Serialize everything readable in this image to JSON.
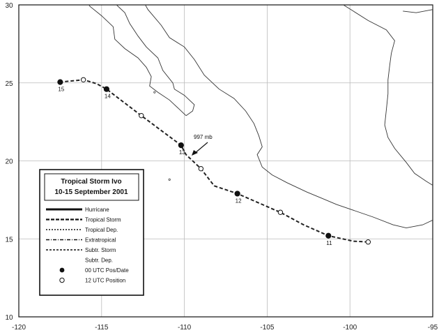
{
  "map": {
    "lon_range": [
      -120,
      -95
    ],
    "lat_range": [
      10,
      30
    ],
    "x_ticks": [
      -120,
      -115,
      -110,
      -105,
      -100,
      -95
    ],
    "y_ticks": [
      10,
      15,
      20,
      25,
      30
    ],
    "grid": true
  },
  "storm": {
    "title": "Tropical Storm Ivo",
    "dates": "10-15 September 2001",
    "track_type": "Tropical Storm",
    "track": [
      {
        "lon": -98.9,
        "lat": 14.8
      },
      {
        "lon": -99.8,
        "lat": 14.85
      },
      {
        "lon": -101.3,
        "lat": 15.2
      },
      {
        "lon": -102.8,
        "lat": 15.9
      },
      {
        "lon": -104.2,
        "lat": 16.7
      },
      {
        "lon": -106.8,
        "lat": 17.9
      },
      {
        "lon": -108.2,
        "lat": 18.4
      },
      {
        "lon": -109.0,
        "lat": 19.5
      },
      {
        "lon": -109.9,
        "lat": 20.4
      },
      {
        "lon": -110.2,
        "lat": 21.0
      },
      {
        "lon": -112.6,
        "lat": 22.9
      },
      {
        "lon": -114.7,
        "lat": 24.6
      },
      {
        "lon": -115.3,
        "lat": 24.95
      },
      {
        "lon": -116.1,
        "lat": 25.2
      },
      {
        "lon": -117.5,
        "lat": 25.05
      }
    ],
    "positions_00utc": [
      {
        "label": "11",
        "lon": -101.3,
        "lat": 15.2
      },
      {
        "label": "12",
        "lon": -106.8,
        "lat": 17.9
      },
      {
        "label": "13",
        "lon": -110.2,
        "lat": 21.0
      },
      {
        "label": "14",
        "lon": -114.7,
        "lat": 24.6
      },
      {
        "label": "15",
        "lon": -117.5,
        "lat": 25.05
      }
    ],
    "positions_12utc": [
      {
        "lon": -98.9,
        "lat": 14.8
      },
      {
        "lon": -104.2,
        "lat": 16.7
      },
      {
        "lon": -109.0,
        "lat": 19.5
      },
      {
        "lon": -112.6,
        "lat": 22.9
      },
      {
        "lon": -116.1,
        "lat": 25.2
      }
    ],
    "min_pressure": {
      "text": "997 mb",
      "lon": -109.6,
      "lat": 20.5
    }
  },
  "legend": {
    "items": [
      {
        "label": "Hurricane",
        "style": "hurricane"
      },
      {
        "label": "Tropical Storm",
        "style": "storm"
      },
      {
        "label": "Tropical Dep.",
        "style": "dep"
      },
      {
        "label": "Extratropical",
        "style": "extra"
      },
      {
        "label": "Subtr. Storm",
        "style": "substorm"
      },
      {
        "label": "Subtr. Dep.",
        "style": "subdep"
      },
      {
        "label": "00 UTC Pos/Date",
        "style": "dot-filled"
      },
      {
        "label": "12 UTC Position",
        "style": "dot-open"
      }
    ]
  },
  "colors": {
    "track": "#222222",
    "coast": "#333333",
    "grid": "#bbbbbb"
  }
}
